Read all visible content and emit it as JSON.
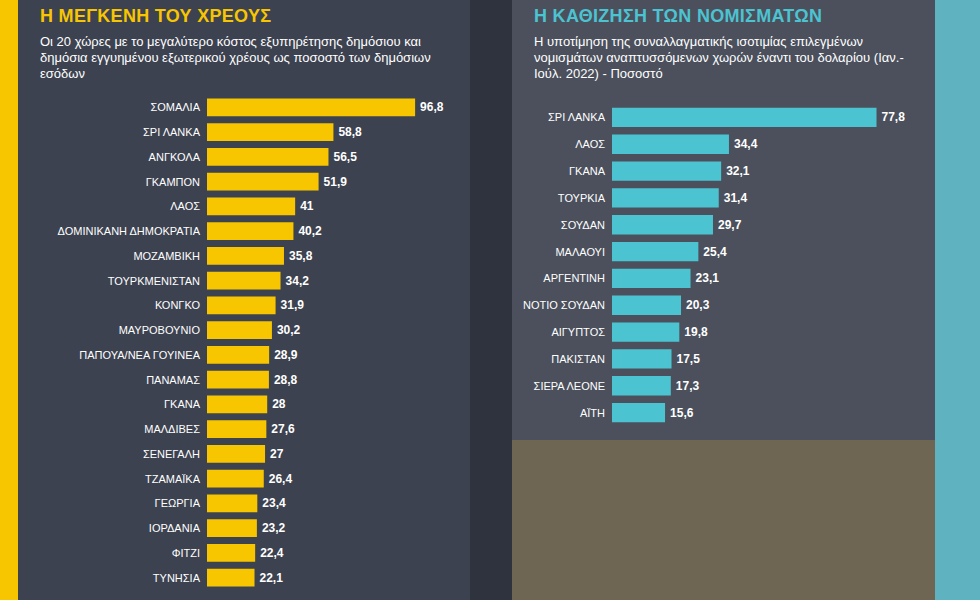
{
  "chart_data": [
    {
      "type": "bar",
      "title": "Η ΜΕΓΚΕΝΗ ΤΟΥ ΧΡΕΟΥΣ",
      "subtitle": "Οι 20 χώρες με το μεγαλύτερο κόστος εξυπηρέτησης δημόσιου και δημόσια εγγυημένου εξωτερικού χρέους ως ποσοστό των δημόσιων εσόδων",
      "categories": [
        "ΣΟΜΑΛΙΑ",
        "ΣΡΙ ΛΑΝΚΑ",
        "ΑΝΓΚΟΛΑ",
        "ΓΚΑΜΠΟΝ",
        "ΛΑΟΣ",
        "ΔΟΜΙΝΙΚΑΝΗ ΔΗΜΟΚΡΑΤΙΑ",
        "ΜΟΖΑΜΒΙΚΗ",
        "ΤΟΥΡΚΜΕΝΙΣΤΑΝ",
        "ΚΟΝΓΚΟ",
        "ΜΑΥΡΟΒΟΥΝΙΟ",
        "ΠΑΠΟΥΑ/ΝΕΑ ΓΟΥΙΝΕΑ",
        "ΠΑΝΑΜΑΣ",
        "ΓΚΑΝΑ",
        "ΜΑΛΔΙΒΕΣ",
        "ΣΕΝΕΓΑΛΗ",
        "ΤΖΑΜΑΪΚΑ",
        "ΓΕΩΡΓΙΑ",
        "ΙΟΡΔΑΝΙΑ",
        "ΦΙΤΖΙ",
        "ΤΥΝΗΣΙΑ"
      ],
      "values": [
        96.8,
        58.8,
        56.5,
        51.9,
        41,
        40.2,
        35.8,
        34.2,
        31.9,
        30.2,
        28.9,
        28.8,
        28,
        27.6,
        27,
        26.4,
        23.4,
        23.2,
        22.4,
        22.1
      ],
      "value_labels": [
        "96,8",
        "58,8",
        "56,5",
        "51,9",
        "41",
        "40,2",
        "35,8",
        "34,2",
        "31,9",
        "30,2",
        "28,9",
        "28,8",
        "28",
        "27,6",
        "27",
        "26,4",
        "23,4",
        "23,2",
        "22,4",
        "22,1"
      ],
      "color": "#f7c600",
      "xlim": [
        0,
        100
      ],
      "orientation": "horizontal",
      "data_labels": true,
      "tick_labels": "y",
      "grid": false
    },
    {
      "type": "bar",
      "title": "Η ΚΑΘΙΖΗΣΗ ΤΩΝ ΝΟΜΙΣΜΑΤΩΝ",
      "subtitle": "Η υποτίμηση της συναλλαγματικής ισοτιμίας επιλεγμένων νομισμάτων αναπτυσσόμενων χωρών έναντι του δολαρίου (Ιαν.-Ιούλ. 2022) - Ποσοστό",
      "categories": [
        "ΣΡΙ ΛΑΝΚΑ",
        "ΛΑΟΣ",
        "ΓΚΑΝΑ",
        "ΤΟΥΡΚΙΑ",
        "ΣΟΥΔΑΝ",
        "ΜΑΛΑΟΥΙ",
        "ΑΡΓΕΝΤΙΝΗ",
        "ΝΟΤΙΟ ΣΟΥΔΑΝ",
        "ΑΙΓΥΠΤΟΣ",
        "ΠΑΚΙΣΤΑΝ",
        "ΣΙΕΡΑ ΛΕΟΝΕ",
        "ΑΪΤΗ"
      ],
      "values": [
        77.8,
        34.4,
        32.1,
        31.4,
        29.7,
        25.4,
        23.1,
        20.3,
        19.8,
        17.5,
        17.3,
        15.6
      ],
      "value_labels": [
        "77,8",
        "34,4",
        "32,1",
        "31,4",
        "29,7",
        "25,4",
        "23,1",
        "20,3",
        "19,8",
        "17,5",
        "17,3",
        "15,6"
      ],
      "color": "#4cc3d1",
      "xlim": [
        0,
        80
      ],
      "orientation": "horizontal",
      "data_labels": true,
      "tick_labels": "y",
      "grid": false
    }
  ]
}
